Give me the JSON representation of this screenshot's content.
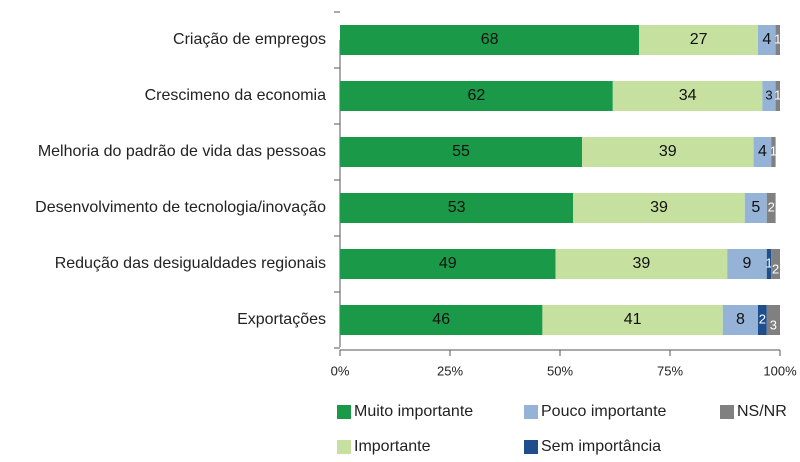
{
  "chart_data": {
    "type": "stacked-bar-horizontal",
    "categories": [
      "Criação de empregos",
      "Crescimeno da economia",
      "Melhoria do padrão de vida das pessoas",
      "Desenvolvimento de tecnologia/inovação",
      "Redução das desigualdades regionais",
      "Exportações"
    ],
    "series": [
      {
        "name": "Muito importante",
        "color": "#1a9a48",
        "values": [
          68,
          62,
          55,
          53,
          49,
          46
        ]
      },
      {
        "name": "Importante",
        "color": "#c6e0a0",
        "values": [
          27,
          34,
          39,
          39,
          39,
          41
        ]
      },
      {
        "name": "Pouco importante",
        "color": "#95b3d7",
        "values": [
          4,
          3,
          4,
          5,
          9,
          8
        ]
      },
      {
        "name": "Sem importância",
        "color": "#1f4e8c",
        "values": [
          0,
          0,
          0,
          0,
          1,
          2
        ]
      },
      {
        "name": "NS/NR",
        "color": "#808080",
        "values": [
          1,
          1,
          1,
          2,
          2,
          3
        ]
      }
    ],
    "xlim": [
      0,
      100
    ],
    "xticks": [
      {
        "value": 0,
        "label": "0%"
      },
      {
        "value": 25,
        "label": "25%"
      },
      {
        "value": 50,
        "label": "50%"
      },
      {
        "value": 75,
        "label": "75%"
      },
      {
        "value": 100,
        "label": "100%"
      }
    ],
    "legend": "bottom"
  }
}
